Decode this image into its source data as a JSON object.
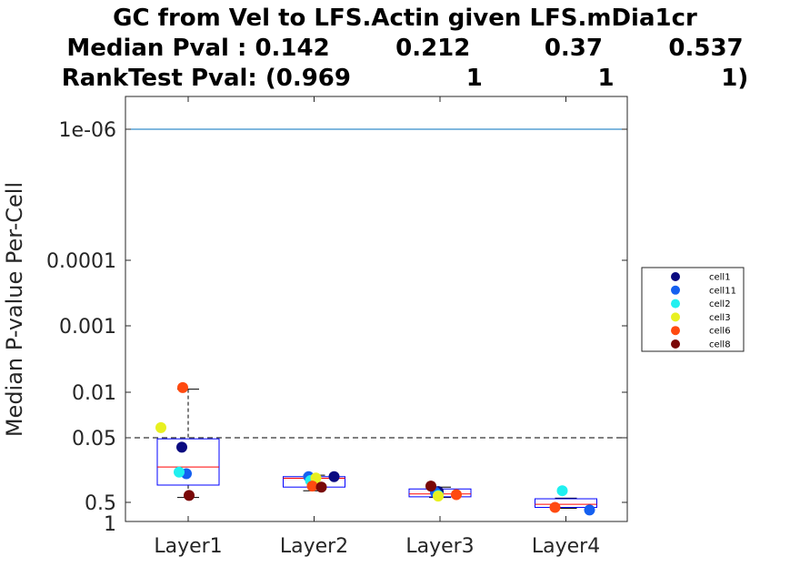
{
  "chart_data": {
    "type": "box-scatter",
    "title_lines": [
      "GC from Vel to LFS.Actin given LFS.mDia1cr",
      "Median Pval : 0.142        0.212         0.37        0.537",
      "RankTest Pval: (0.969              1              1             1)"
    ],
    "ylabel": "Median P-value Per-Cell",
    "xlabel": "",
    "y_scale": "log-reversed",
    "ylim": [
      1e-07,
      1
    ],
    "y_ticks": [
      {
        "value": 1e-06,
        "label": "1e-06"
      },
      {
        "value": 0.0001,
        "label": "0.0001"
      },
      {
        "value": 0.001,
        "label": "0.001"
      },
      {
        "value": 0.01,
        "label": "0.01"
      },
      {
        "value": 0.05,
        "label": "0.05"
      },
      {
        "value": 0.5,
        "label": "0.5"
      },
      {
        "value": 1,
        "label": "1"
      }
    ],
    "categories": [
      "Layer1",
      "Layer2",
      "Layer3",
      "Layer4"
    ],
    "reference_lines": [
      {
        "value": 1e-06,
        "style": "solid",
        "color": "#0072bd"
      },
      {
        "value": 0.05,
        "style": "dashed",
        "color": "#000000"
      }
    ],
    "boxes": [
      {
        "category": "Layer1",
        "q1": 0.052,
        "median": 0.142,
        "q3": 0.27,
        "whisker_low": 0.009,
        "whisker_high": 0.42
      },
      {
        "category": "Layer2",
        "q1": 0.2,
        "median": 0.212,
        "q3": 0.29,
        "whisker_low": 0.19,
        "whisker_high": 0.33
      },
      {
        "category": "Layer3",
        "q1": 0.31,
        "median": 0.37,
        "q3": 0.41,
        "whisker_low": 0.29,
        "whisker_high": 0.42
      },
      {
        "category": "Layer4",
        "q1": 0.44,
        "median": 0.537,
        "q3": 0.6,
        "whisker_low": 0.43,
        "whisker_high": 0.62
      }
    ],
    "series": [
      {
        "name": "cell1",
        "color": "#0a0a80",
        "values": [
          0.07,
          0.2,
          0.34,
          null
        ]
      },
      {
        "name": "cell11",
        "color": "#1560f0",
        "values": [
          0.18,
          0.2,
          0.35,
          0.66
        ]
      },
      {
        "name": "cell2",
        "color": "#20f0f0",
        "values": [
          0.17,
          0.23,
          0.39,
          0.33
        ]
      },
      {
        "name": "cell3",
        "color": "#e8f020",
        "values": [
          0.035,
          0.21,
          0.4,
          null
        ]
      },
      {
        "name": "cell6",
        "color": "#ff4a10",
        "values": [
          0.0085,
          0.28,
          0.38,
          0.6
        ]
      },
      {
        "name": "cell8",
        "color": "#7a0808",
        "values": [
          0.39,
          0.29,
          0.28,
          null
        ]
      }
    ],
    "legend_position": "right",
    "grid": false
  }
}
